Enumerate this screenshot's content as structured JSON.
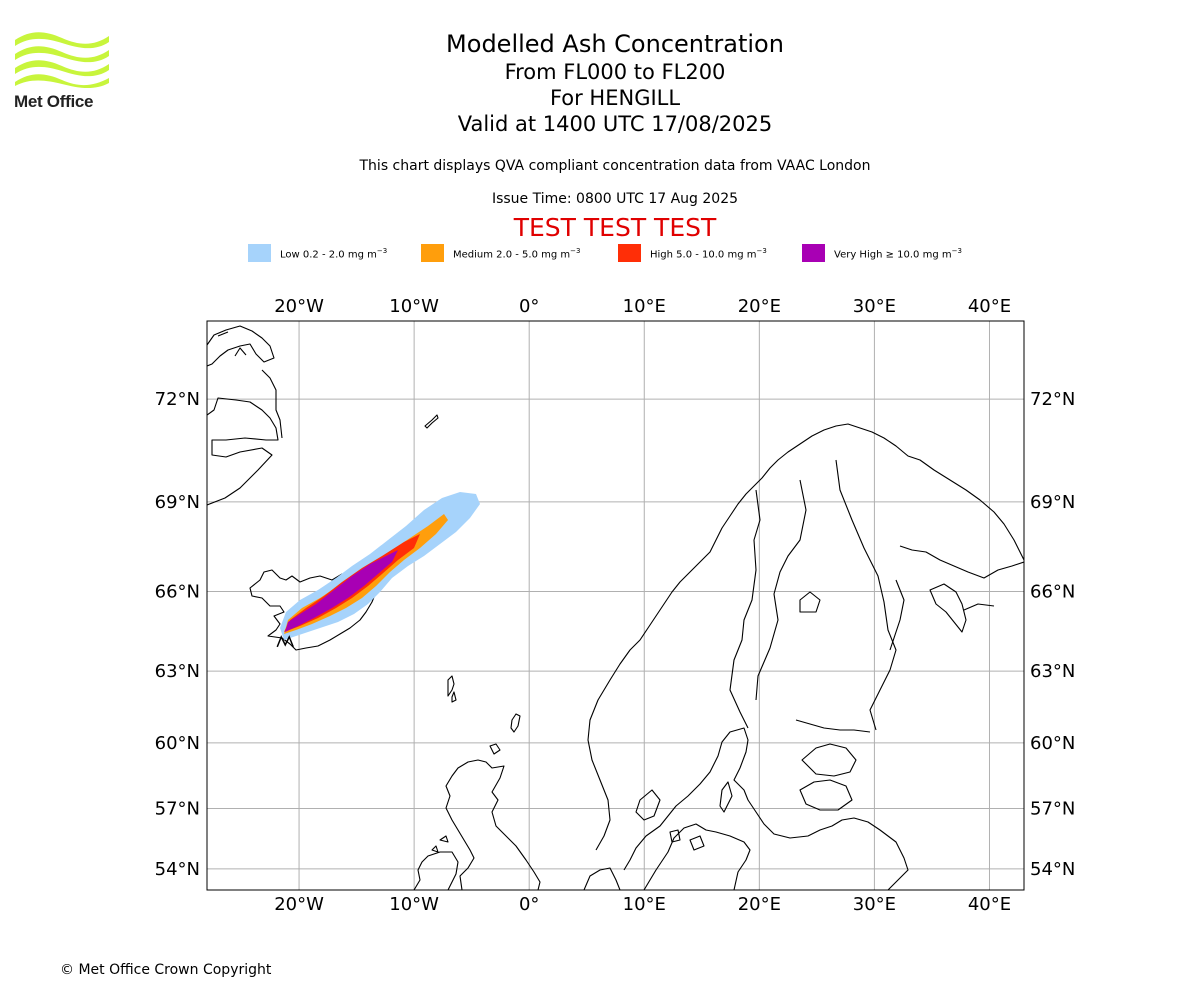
{
  "header": {
    "logo_text": "Met Office",
    "title": "Modelled Ash Concentration",
    "level_range": "From FL000 to FL200",
    "volcano": "For HENGILL",
    "valid_time": "Valid at 1400 UTC 17/08/2025",
    "description": "This chart displays QVA compliant concentration data from VAAC London",
    "issue_time": "Issue Time: 0800 UTC 17 Aug 2025",
    "test_banner": "TEST TEST TEST"
  },
  "legend": [
    {
      "label": "Low 0.2 - 2.0 mg m",
      "color": "#a6d3fb"
    },
    {
      "label": "Medium 2.0 - 5.0 mg m",
      "color": "#ff9e0c"
    },
    {
      "label": "High 5.0 - 10.0 mg m",
      "color": "#ff2e07"
    },
    {
      "label": "Very High ≥ 10.0 mg m",
      "color": "#a800b4"
    }
  ],
  "legend_unit_exp": "−3",
  "map": {
    "lon_range": [
      -28,
      43
    ],
    "lat_range": [
      52.9,
      74.0
    ],
    "lon_ticks": [
      {
        "v": -20,
        "label": "20°W"
      },
      {
        "v": -10,
        "label": "10°W"
      },
      {
        "v": 0,
        "label": "0°"
      },
      {
        "v": 10,
        "label": "10°E"
      },
      {
        "v": 20,
        "label": "20°E"
      },
      {
        "v": 30,
        "label": "30°E"
      },
      {
        "v": 40,
        "label": "40°E"
      }
    ],
    "lat_ticks": [
      {
        "v": 72,
        "label": "72°N"
      },
      {
        "v": 69,
        "label": "69°N"
      },
      {
        "v": 66,
        "label": "66°N"
      },
      {
        "v": 63,
        "label": "63°N"
      },
      {
        "v": 60,
        "label": "60°N"
      },
      {
        "v": 57,
        "label": "57°N"
      },
      {
        "v": 54,
        "label": "54°N"
      }
    ],
    "grid": true,
    "volcano_marker": {
      "lon": -21.2,
      "lat": 64.1
    }
  },
  "footer": {
    "copyright": "© Met Office Crown Copyright"
  },
  "colors": {
    "test_banner": "#e00000",
    "logo_green": "#c8f53c"
  }
}
